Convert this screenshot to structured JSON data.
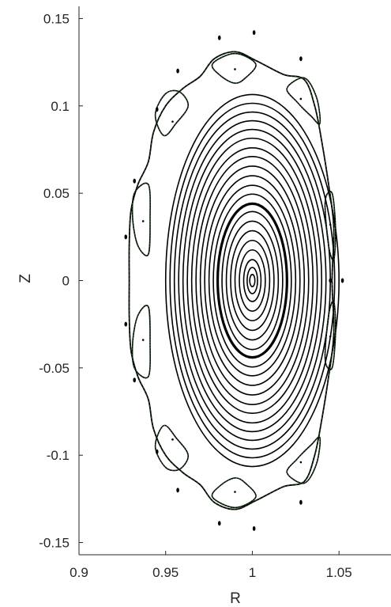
{
  "chart_data": {
    "type": "line",
    "title": "",
    "xlabel": "R",
    "ylabel": "Z",
    "xlim": [
      0.9,
      1.08
    ],
    "ylim": [
      -0.157,
      0.157
    ],
    "xticks": [
      "0.9",
      "0.95",
      "1",
      "1.05"
    ],
    "yticks": [
      "0.15",
      "0.1",
      "0.05",
      "0",
      "-0.05",
      "-0.1",
      "-0.15"
    ],
    "xtick_values": [
      0.9,
      0.95,
      1.0,
      1.05
    ],
    "ytick_values": [
      0.15,
      0.1,
      0.05,
      0,
      -0.05,
      -0.1,
      -0.15
    ],
    "grid": false,
    "legend": "none",
    "colors": {
      "surface": "#000000",
      "island": "#1a5c1a",
      "axis": "#262626"
    },
    "center": {
      "r": 1.0,
      "z": 0.0
    },
    "flux_surfaces": [
      {
        "a": 0.0015,
        "b": 0.0035
      },
      {
        "a": 0.003,
        "b": 0.0075
      },
      {
        "a": 0.005,
        "b": 0.012
      },
      {
        "a": 0.0075,
        "b": 0.0175
      },
      {
        "a": 0.01,
        "b": 0.023
      },
      {
        "a": 0.0125,
        "b": 0.0285
      },
      {
        "a": 0.015,
        "b": 0.034
      },
      {
        "a": 0.0175,
        "b": 0.0395
      },
      {
        "a": 0.02,
        "b": 0.044,
        "bold": true
      },
      {
        "a": 0.0225,
        "b": 0.0495
      },
      {
        "a": 0.025,
        "b": 0.0545
      },
      {
        "a": 0.0275,
        "b": 0.06
      },
      {
        "a": 0.03,
        "b": 0.0655
      },
      {
        "a": 0.0325,
        "b": 0.071
      },
      {
        "a": 0.035,
        "b": 0.076
      },
      {
        "a": 0.0375,
        "b": 0.0815
      },
      {
        "a": 0.04,
        "b": 0.0865
      },
      {
        "a": 0.0425,
        "b": 0.0915
      },
      {
        "a": 0.045,
        "b": 0.0965
      },
      {
        "a": 0.0475,
        "b": 0.1015
      },
      {
        "a": 0.05,
        "b": 0.1065
      }
    ],
    "last_closed_surface": [
      [
        1.046,
        0.0
      ],
      [
        1.047,
        0.03
      ],
      [
        1.044,
        0.055
      ],
      [
        1.04,
        0.08
      ],
      [
        1.036,
        0.1
      ],
      [
        1.03,
        0.115
      ],
      [
        1.018,
        0.118
      ],
      [
        1.002,
        0.126
      ],
      [
        0.99,
        0.131
      ],
      [
        0.978,
        0.127
      ],
      [
        0.97,
        0.117
      ],
      [
        0.96,
        0.11
      ],
      [
        0.95,
        0.1
      ],
      [
        0.943,
        0.085
      ],
      [
        0.94,
        0.068
      ],
      [
        0.934,
        0.055
      ],
      [
        0.93,
        0.04
      ],
      [
        0.929,
        0.02
      ],
      [
        0.929,
        0.0
      ],
      [
        0.929,
        -0.02
      ],
      [
        0.93,
        -0.04
      ],
      [
        0.934,
        -0.055
      ],
      [
        0.94,
        -0.068
      ],
      [
        0.943,
        -0.085
      ],
      [
        0.95,
        -0.1
      ],
      [
        0.96,
        -0.11
      ],
      [
        0.97,
        -0.117
      ],
      [
        0.978,
        -0.127
      ],
      [
        0.99,
        -0.131
      ],
      [
        1.002,
        -0.126
      ],
      [
        1.018,
        -0.118
      ],
      [
        1.03,
        -0.115
      ],
      [
        1.036,
        -0.1
      ],
      [
        1.04,
        -0.08
      ],
      [
        1.044,
        -0.055
      ],
      [
        1.047,
        -0.03
      ]
    ],
    "islands": [
      {
        "pts": [
          [
            0.977,
            0.124
          ],
          [
            0.99,
            0.13
          ],
          [
            1.002,
            0.124
          ],
          [
            0.996,
            0.116
          ],
          [
            0.99,
            0.113
          ],
          [
            0.982,
            0.117
          ]
        ],
        "o": [
          0.99,
          0.121
        ]
      },
      {
        "pts": [
          [
            0.977,
            -0.124
          ],
          [
            0.99,
            -0.13
          ],
          [
            1.002,
            -0.124
          ],
          [
            0.996,
            -0.116
          ],
          [
            0.99,
            -0.113
          ],
          [
            0.982,
            -0.117
          ]
        ],
        "o": [
          0.99,
          -0.121
        ]
      },
      {
        "pts": [
          [
            1.02,
            0.11
          ],
          [
            1.03,
            0.116
          ],
          [
            1.037,
            0.105
          ],
          [
            1.039,
            0.09
          ],
          [
            1.034,
            0.094
          ],
          [
            1.026,
            0.102
          ]
        ],
        "o": [
          1.028,
          0.104
        ]
      },
      {
        "pts": [
          [
            1.02,
            -0.11
          ],
          [
            1.03,
            -0.116
          ],
          [
            1.037,
            -0.105
          ],
          [
            1.039,
            -0.09
          ],
          [
            1.034,
            -0.094
          ],
          [
            1.026,
            -0.102
          ]
        ],
        "o": [
          1.028,
          -0.104
        ]
      },
      {
        "pts": [
          [
            0.944,
            0.095
          ],
          [
            0.95,
            0.107
          ],
          [
            0.958,
            0.108
          ],
          [
            0.963,
            0.1
          ],
          [
            0.956,
            0.09
          ],
          [
            0.949,
            0.083
          ]
        ],
        "o": [
          0.954,
          0.091
        ]
      },
      {
        "pts": [
          [
            0.944,
            -0.095
          ],
          [
            0.95,
            -0.107
          ],
          [
            0.958,
            -0.108
          ],
          [
            0.963,
            -0.1
          ],
          [
            0.956,
            -0.09
          ],
          [
            0.949,
            -0.083
          ]
        ],
        "o": [
          0.954,
          -0.091
        ]
      },
      {
        "pts": [
          [
            0.932,
            0.05
          ],
          [
            0.94,
            0.055
          ],
          [
            0.941,
            0.035
          ],
          [
            0.94,
            0.015
          ],
          [
            0.934,
            0.02
          ],
          [
            0.931,
            0.035
          ]
        ],
        "o": [
          0.937,
          0.034
        ]
      },
      {
        "pts": [
          [
            0.932,
            -0.05
          ],
          [
            0.94,
            -0.055
          ],
          [
            0.941,
            -0.035
          ],
          [
            0.94,
            -0.015
          ],
          [
            0.934,
            -0.02
          ],
          [
            0.931,
            -0.035
          ]
        ],
        "o": [
          0.937,
          -0.034
        ]
      },
      {
        "pts": [
          [
            1.042,
            0.045
          ],
          [
            1.046,
            0.05
          ],
          [
            1.048,
            0.03
          ],
          [
            1.047,
            0.012
          ],
          [
            1.044,
            0.02
          ]
        ],
        "o": [
          1.045,
          0.032
        ]
      },
      {
        "pts": [
          [
            1.042,
            -0.045
          ],
          [
            1.046,
            -0.05
          ],
          [
            1.048,
            -0.03
          ],
          [
            1.047,
            -0.012
          ],
          [
            1.044,
            -0.02
          ]
        ],
        "o": [
          1.045,
          -0.032
        ]
      }
    ],
    "chaotic_marks": [
      [
        0.981,
        0.139
      ],
      [
        1.001,
        0.142
      ],
      [
        1.028,
        0.127
      ],
      [
        0.957,
        0.12
      ],
      [
        0.945,
        0.098
      ],
      [
        0.932,
        0.057
      ],
      [
        0.927,
        0.025
      ],
      [
        1.052,
        0.0
      ],
      [
        0.981,
        -0.139
      ],
      [
        1.001,
        -0.142
      ],
      [
        1.028,
        -0.127
      ],
      [
        0.957,
        -0.12
      ],
      [
        0.945,
        -0.098
      ],
      [
        0.932,
        -0.057
      ],
      [
        0.927,
        -0.025
      ],
      [
        1.045,
        0.0
      ]
    ]
  }
}
